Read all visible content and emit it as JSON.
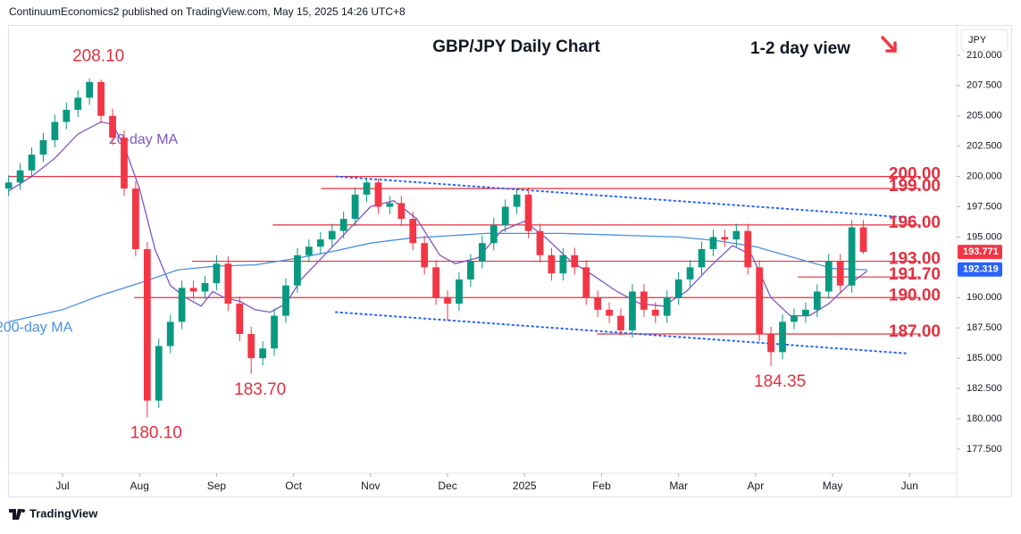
{
  "header": {
    "published": "ContinuumEconomics2 published on TradingView.com, May 15, 2025 14:26 UTC+8",
    "brand": "TradingView"
  },
  "chart_data": {
    "type": "candlestick",
    "title": "GBP/JPY Daily Chart",
    "subtitle": "1-2 day view",
    "currency": "JPY",
    "up_color": "#089981",
    "down_color": "#f23645",
    "xlim": [
      -0.7,
      11.6
    ],
    "xticks": [
      {
        "value": 0,
        "label": "Jul"
      },
      {
        "value": 1,
        "label": "Aug"
      },
      {
        "value": 2,
        "label": "Sep"
      },
      {
        "value": 3,
        "label": "Oct"
      },
      {
        "value": 4,
        "label": "Nov"
      },
      {
        "value": 5,
        "label": "Dec"
      },
      {
        "value": 6,
        "label": "2025"
      },
      {
        "value": 7,
        "label": "Feb"
      },
      {
        "value": 8,
        "label": "Mar"
      },
      {
        "value": 9,
        "label": "Apr"
      },
      {
        "value": 10,
        "label": "May"
      },
      {
        "value": 11,
        "label": "Jun"
      }
    ],
    "ylim": [
      175.5,
      212.5
    ],
    "yticks": [
      {
        "value": 177.5,
        "label": "177.500"
      },
      {
        "value": 180,
        "label": "180.000"
      },
      {
        "value": 182.5,
        "label": "182.500"
      },
      {
        "value": 185,
        "label": "185.000"
      },
      {
        "value": 187.5,
        "label": "187.500"
      },
      {
        "value": 190,
        "label": "190.000"
      },
      {
        "value": 192.5,
        "label": "192.500"
      },
      {
        "value": 195,
        "label": "195.000"
      },
      {
        "value": 197.5,
        "label": "197.500"
      },
      {
        "value": 200,
        "label": "200.000"
      },
      {
        "value": 202.5,
        "label": "202.500"
      },
      {
        "value": 205,
        "label": "205.000"
      },
      {
        "value": 207.5,
        "label": "207.500"
      },
      {
        "value": 210,
        "label": "210.000"
      }
    ],
    "x": [
      -0.7,
      -0.55,
      -0.4,
      -0.25,
      -0.1,
      0.05,
      0.2,
      0.35,
      0.5,
      0.65,
      0.8,
      0.95,
      1.1,
      1.25,
      1.4,
      1.55,
      1.7,
      1.85,
      2.0,
      2.15,
      2.3,
      2.45,
      2.6,
      2.75,
      2.9,
      3.05,
      3.2,
      3.35,
      3.5,
      3.65,
      3.8,
      3.95,
      4.1,
      4.25,
      4.4,
      4.55,
      4.7,
      4.85,
      5.0,
      5.15,
      5.3,
      5.45,
      5.6,
      5.75,
      5.9,
      6.05,
      6.2,
      6.35,
      6.5,
      6.65,
      6.8,
      6.95,
      7.1,
      7.25,
      7.4,
      7.55,
      7.7,
      7.85,
      8.0,
      8.15,
      8.3,
      8.45,
      8.6,
      8.75,
      8.9,
      9.05,
      9.2,
      9.35,
      9.5,
      9.65,
      9.8,
      9.95,
      10.1,
      10.25,
      10.4
    ],
    "candles": [
      [
        199.0,
        200.1,
        198.4,
        199.5
      ],
      [
        199.5,
        201.1,
        198.9,
        200.5
      ],
      [
        200.5,
        202.4,
        199.9,
        201.8
      ],
      [
        201.8,
        203.6,
        201.2,
        203.0
      ],
      [
        203.0,
        205.1,
        202.4,
        204.5
      ],
      [
        204.5,
        206.1,
        203.9,
        205.5
      ],
      [
        205.5,
        207.1,
        204.9,
        206.5
      ],
      [
        206.5,
        208.1,
        205.9,
        207.8
      ],
      [
        207.8,
        208.0,
        204.4,
        205.0
      ],
      [
        205.0,
        205.6,
        202.6,
        203.2
      ],
      [
        203.2,
        203.8,
        198.4,
        199.0
      ],
      [
        199.0,
        199.6,
        193.4,
        194.0
      ],
      [
        194.0,
        194.6,
        180.1,
        181.5
      ],
      [
        181.5,
        186.6,
        180.9,
        186.0
      ],
      [
        186.0,
        188.6,
        185.4,
        188.0
      ],
      [
        188.0,
        191.4,
        187.4,
        190.8
      ],
      [
        190.8,
        191.4,
        189.9,
        190.5
      ],
      [
        190.5,
        191.8,
        189.9,
        191.2
      ],
      [
        191.2,
        193.5,
        190.6,
        192.8
      ],
      [
        192.8,
        193.4,
        188.9,
        189.5
      ],
      [
        189.5,
        190.1,
        186.4,
        187.0
      ],
      [
        187.0,
        187.6,
        183.7,
        185.0
      ],
      [
        185.0,
        186.4,
        184.4,
        185.8
      ],
      [
        185.8,
        189.1,
        185.2,
        188.5
      ],
      [
        188.5,
        191.6,
        187.9,
        191.0
      ],
      [
        191.0,
        194.1,
        190.4,
        193.5
      ],
      [
        193.5,
        194.8,
        192.9,
        194.2
      ],
      [
        194.2,
        195.4,
        193.6,
        194.8
      ],
      [
        194.8,
        196.1,
        194.2,
        195.5
      ],
      [
        195.5,
        197.1,
        194.9,
        196.5
      ],
      [
        196.5,
        199.1,
        195.9,
        198.5
      ],
      [
        198.5,
        199.9,
        197.9,
        199.5
      ],
      [
        199.5,
        199.8,
        196.9,
        197.5
      ],
      [
        197.5,
        198.4,
        196.9,
        197.8
      ],
      [
        197.8,
        198.4,
        195.9,
        196.5
      ],
      [
        196.5,
        197.1,
        193.9,
        194.5
      ],
      [
        194.5,
        195.1,
        191.9,
        192.5
      ],
      [
        192.5,
        193.1,
        189.4,
        190.0
      ],
      [
        190.0,
        190.6,
        188.1,
        189.5
      ],
      [
        189.5,
        192.1,
        188.9,
        191.5
      ],
      [
        191.5,
        193.6,
        190.9,
        193.0
      ],
      [
        193.0,
        195.1,
        192.4,
        194.5
      ],
      [
        194.5,
        196.6,
        193.9,
        196.0
      ],
      [
        196.0,
        198.1,
        195.4,
        197.5
      ],
      [
        197.5,
        198.9,
        196.9,
        198.5
      ],
      [
        198.5,
        199.1,
        194.9,
        195.5
      ],
      [
        195.5,
        196.1,
        192.9,
        193.5
      ],
      [
        193.5,
        194.1,
        191.4,
        192.0
      ],
      [
        192.0,
        194.1,
        191.4,
        193.5
      ],
      [
        193.5,
        194.1,
        191.9,
        192.5
      ],
      [
        192.5,
        193.1,
        189.4,
        190.0
      ],
      [
        190.0,
        190.6,
        188.4,
        189.0
      ],
      [
        189.0,
        189.6,
        187.9,
        188.5
      ],
      [
        188.5,
        189.1,
        186.9,
        187.3
      ],
      [
        187.3,
        191.1,
        186.7,
        190.5
      ],
      [
        190.5,
        191.1,
        188.4,
        189.0
      ],
      [
        189.0,
        189.6,
        187.9,
        188.5
      ],
      [
        188.5,
        190.6,
        187.9,
        190.0
      ],
      [
        190.0,
        192.1,
        189.4,
        191.5
      ],
      [
        191.5,
        193.1,
        190.9,
        192.5
      ],
      [
        192.5,
        194.6,
        191.9,
        194.0
      ],
      [
        194.0,
        195.6,
        193.4,
        195.0
      ],
      [
        195.0,
        195.6,
        194.2,
        194.8
      ],
      [
        194.8,
        196.1,
        194.2,
        195.5
      ],
      [
        195.5,
        196.1,
        191.9,
        192.5
      ],
      [
        192.5,
        193.1,
        186.4,
        187.0
      ],
      [
        187.0,
        187.6,
        184.35,
        185.5
      ],
      [
        185.5,
        188.6,
        184.9,
        188.0
      ],
      [
        188.0,
        189.1,
        187.4,
        188.5
      ],
      [
        188.5,
        189.6,
        187.9,
        189.0
      ],
      [
        189.0,
        191.1,
        188.4,
        190.5
      ],
      [
        190.5,
        193.6,
        189.9,
        193.0
      ],
      [
        193.0,
        193.6,
        190.4,
        191.0
      ],
      [
        191.0,
        196.4,
        190.4,
        195.8
      ],
      [
        195.8,
        196.4,
        193.6,
        193.77
      ]
    ],
    "series": [
      {
        "name": "20-day MA",
        "color": "#7e57c2",
        "x": [
          -0.7,
          -0.4,
          -0.1,
          0.2,
          0.5,
          0.65,
          0.8,
          1.0,
          1.2,
          1.4,
          1.6,
          1.8,
          1.95,
          2.1,
          2.3,
          2.5,
          2.7,
          2.9,
          3.1,
          3.4,
          3.7,
          4.0,
          4.3,
          4.6,
          4.9,
          5.1,
          5.4,
          5.7,
          6.0,
          6.3,
          6.6,
          6.9,
          7.2,
          7.5,
          7.8,
          8.1,
          8.4,
          8.7,
          8.95,
          9.2,
          9.45,
          9.7,
          9.95,
          10.2,
          10.45
        ],
        "values": [
          198.8,
          200,
          201.5,
          203.5,
          204.5,
          204.3,
          202.5,
          199,
          194,
          191,
          190,
          189.3,
          190.5,
          190,
          189.7,
          189,
          188.8,
          189.5,
          191.5,
          193.5,
          195.5,
          197.5,
          198,
          196.5,
          193.5,
          192.8,
          193.3,
          195.5,
          196.3,
          194.8,
          193,
          191.8,
          190.5,
          189.5,
          189.3,
          190.5,
          192.5,
          194.3,
          193.5,
          190,
          188.5,
          188.5,
          189.5,
          191,
          192.2
        ],
        "label_x": 1.05,
        "label_y": 203
      },
      {
        "name": "200-day MA",
        "color": "#4a8fe0",
        "x": [
          -0.7,
          0,
          0.5,
          1.0,
          1.5,
          2.0,
          2.5,
          3.0,
          3.5,
          4.0,
          4.5,
          5.0,
          5.5,
          6.0,
          6.5,
          7.0,
          7.5,
          8.0,
          8.5,
          9.0,
          9.5,
          10.0,
          10.45
        ],
        "values": [
          188,
          189,
          190.2,
          191.2,
          192.3,
          192.6,
          192.7,
          193.2,
          193.8,
          194.5,
          194.9,
          195.1,
          195.3,
          195.3,
          195.3,
          195.2,
          195.1,
          195.0,
          194.7,
          194.2,
          193.3,
          192.4,
          192.3
        ],
        "label_x": -0.37,
        "label_y": 187.5
      }
    ],
    "levels": [
      {
        "value": 200,
        "label": "200.00",
        "from": -0.7,
        "to": 11.14
      },
      {
        "value": 199,
        "label": "199.00",
        "from": 3.36,
        "to": 11.14
      },
      {
        "value": 196,
        "label": "196.00",
        "from": 2.73,
        "to": 11.14
      },
      {
        "value": 193,
        "label": "193.00",
        "from": 1.68,
        "to": 11.14
      },
      {
        "value": 191.7,
        "label": "191.70",
        "from": 9.55,
        "to": 11.14
      },
      {
        "value": 190,
        "label": "190.00",
        "from": 0.93,
        "to": 11.14
      },
      {
        "value": 187,
        "label": "187.00",
        "from": 6.94,
        "to": 11.14
      }
    ],
    "level_color": "#e3303f",
    "trendlines": [
      {
        "x": [
          3.55,
          11.0
        ],
        "values": [
          200.0,
          196.6
        ]
      },
      {
        "x": [
          3.55,
          10.95
        ],
        "values": [
          188.8,
          185.4
        ]
      }
    ],
    "annotations": [
      {
        "label": "208.10",
        "value": 208.1,
        "x": 0.35,
        "side": "above"
      },
      {
        "label": "180.10",
        "value": 180.1,
        "x": 1.1,
        "side": "below"
      },
      {
        "label": "183.70",
        "value": 183.7,
        "x": 2.45,
        "side": "below"
      },
      {
        "label": "184.35",
        "value": 184.35,
        "x": 9.2,
        "side": "below"
      }
    ],
    "price_tags": [
      {
        "label": "193.771",
        "value": 193.771,
        "color": "#f23645"
      },
      {
        "label": "192.319",
        "value": 192.319,
        "color": "#2962ff"
      }
    ]
  }
}
